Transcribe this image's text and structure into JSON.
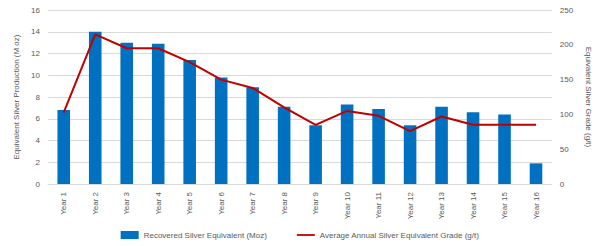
{
  "chart_data": {
    "type": "bar",
    "categories": [
      "Year 1",
      "Year 2",
      "Year 3",
      "Year 4",
      "Year 5",
      "Year 6",
      "Year 7",
      "Year 8",
      "Year 9",
      "Year 10",
      "Year 11",
      "Year 12",
      "Year 13",
      "Year 14",
      "Year 15",
      "Year 16"
    ],
    "series": [
      {
        "name": "Recovered Silver Equivalent (Moz)",
        "type": "bar",
        "color": "#0070c0",
        "values": [
          6.8,
          14.0,
          13.0,
          12.9,
          11.4,
          9.8,
          8.9,
          7.1,
          5.4,
          7.3,
          6.9,
          5.4,
          7.1,
          6.6,
          6.4,
          1.9
        ]
      },
      {
        "name": "Average Annual Silver Equivalent Grade (g/t)",
        "type": "line",
        "color": "#c00000",
        "axis": "y2",
        "values": [
          103,
          215,
          195,
          195,
          175,
          150,
          138,
          110,
          85,
          105,
          98,
          76,
          97,
          85,
          85,
          85
        ]
      }
    ],
    "ylabel": "Equivalent Silver Production (M oz)",
    "y2label": "Equivalent Silver Grade (g/t)",
    "ylim": [
      0,
      16
    ],
    "yticks": [
      0,
      2,
      4,
      6,
      8,
      10,
      12,
      14,
      16
    ],
    "y2lim": [
      0,
      250
    ],
    "y2ticks": [
      0,
      50,
      100,
      150,
      200,
      250
    ],
    "grid": true,
    "legend": "bottom"
  }
}
